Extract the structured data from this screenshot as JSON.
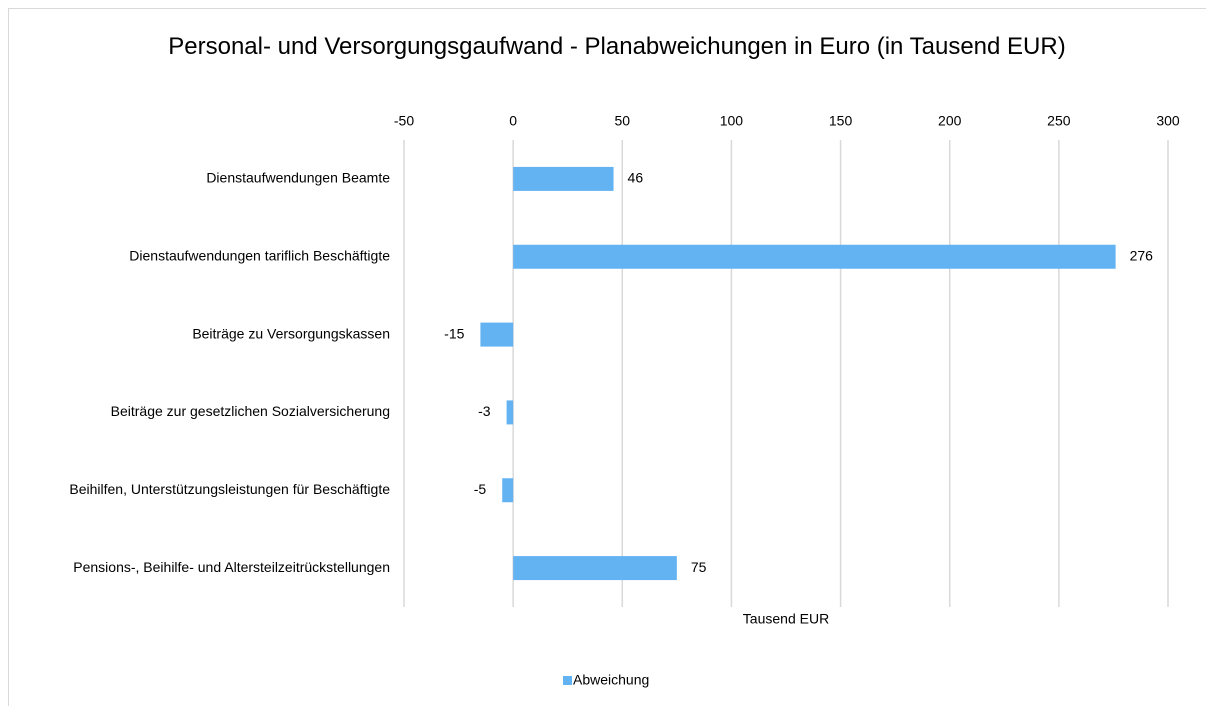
{
  "chart_data": {
    "type": "bar",
    "orientation": "horizontal",
    "title": "Personal- und Versorgungsgaufwand - Planabweichungen in Euro (in Tausend EUR)",
    "x_label": "Tausend EUR",
    "categories": [
      "Dienstaufwendungen Beamte",
      "Dienstaufwendungen tariflich Beschäftigte",
      "Beiträge zu Versorgungskassen",
      "Beiträge zur gesetzlichen Sozialversicherung",
      "Beihilfen, Unterstützungsleistungen für Beschäftigte",
      "Pensions-, Beihilfe- und Altersteilzeitrückstellungen"
    ],
    "series": [
      {
        "name": "Abweichung",
        "color": "#63b3f3",
        "values": [
          46,
          276,
          -15,
          -3,
          -5,
          75
        ]
      }
    ],
    "xlim": [
      -50,
      300
    ],
    "xticks": [
      -50,
      0,
      50,
      100,
      150,
      200,
      250,
      300
    ],
    "grid": true,
    "legend": "bottom"
  }
}
